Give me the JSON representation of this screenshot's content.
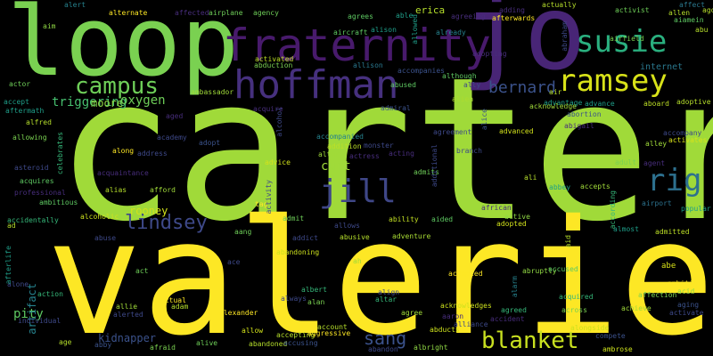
{
  "words": [
    {
      "text": "carter",
      "color": "#a0da39"
    },
    {
      "text": "valerie",
      "color": "#fde725"
    },
    {
      "text": "loop",
      "color": "#7ad151"
    },
    {
      "text": "jo",
      "color": "#482576"
    },
    {
      "text": "fraternity",
      "color": "#481a6c"
    },
    {
      "text": "hoffman",
      "color": "#46307e"
    },
    {
      "text": "susie",
      "color": "#2ab07f"
    },
    {
      "text": "ramsey",
      "color": "#d8e219"
    },
    {
      "text": "campus",
      "color": "#6ece58"
    },
    {
      "text": "jill",
      "color": "#3f4788"
    },
    {
      "text": "rig",
      "color": "#2d708e"
    },
    {
      "text": "lindsey",
      "color": "#3e4989"
    },
    {
      "text": "blanket",
      "color": "#c8e020"
    },
    {
      "text": "bernard",
      "color": "#3b528b"
    },
    {
      "text": "sang",
      "color": "#3b528b"
    },
    {
      "text": "triggering",
      "color": "#46c06f"
    },
    {
      "text": "moore",
      "color": "#8fd744"
    },
    {
      "text": "oxygen",
      "color": "#6ece58"
    },
    {
      "text": "curt",
      "color": "#9fda3a"
    },
    {
      "text": "rooney",
      "color": "#d2e21b"
    },
    {
      "text": "pity",
      "color": "#5ec962"
    },
    {
      "text": "kidnapper",
      "color": "#3b528b"
    },
    {
      "text": "artifact",
      "color": "#26828e"
    },
    {
      "text": "internet",
      "color": "#2a788e"
    },
    {
      "text": "erica",
      "color": "#b5de2b"
    },
    {
      "text": "alien",
      "color": "#addc30"
    },
    {
      "text": "alexander",
      "color": "#fde725"
    },
    {
      "text": "albert",
      "color": "#35b779"
    },
    {
      "text": "afraid",
      "color": "#7ad151"
    },
    {
      "text": "alive",
      "color": "#6ece58"
    },
    {
      "text": "abandoned",
      "color": "#b5de2b"
    },
    {
      "text": "abandon",
      "color": "#3e4989"
    },
    {
      "text": "albright",
      "color": "#8fd744"
    },
    {
      "text": "ambrose",
      "color": "#cde11d"
    },
    {
      "text": "compete",
      "color": "#3b528b"
    },
    {
      "text": "alongside",
      "color": "#cde11d"
    },
    {
      "text": "adventure",
      "color": "#a8db34"
    },
    {
      "text": "ability",
      "color": "#c2df23"
    },
    {
      "text": "aided",
      "color": "#5ec962"
    },
    {
      "text": "admit",
      "color": "#6ece58"
    },
    {
      "text": "addict",
      "color": "#3e4989"
    },
    {
      "text": "abusive",
      "color": "#b5de2b"
    },
    {
      "text": "accepted",
      "color": "#fde725"
    },
    {
      "text": "abruptly",
      "color": "#90d743"
    },
    {
      "text": "accused",
      "color": "#5ec962"
    },
    {
      "text": "acquired",
      "color": "#35b779"
    },
    {
      "text": "achieve",
      "color": "#a0da39"
    },
    {
      "text": "affection",
      "color": "#7ad151"
    },
    {
      "text": "activate",
      "color": "#3e4989"
    },
    {
      "text": "ambition",
      "color": "#fde725"
    },
    {
      "text": "abe",
      "color": "#d8e219"
    },
    {
      "text": "acid",
      "color": "#8fd744"
    },
    {
      "text": "aging",
      "color": "#3b528b"
    },
    {
      "text": "adoptive",
      "color": "#b5de2b"
    },
    {
      "text": "advantage",
      "color": "#1f9e89"
    },
    {
      "text": "abortion",
      "color": "#3b528b"
    },
    {
      "text": "abigail",
      "color": "#472d7b"
    },
    {
      "text": "accompany",
      "color": "#3e4989"
    },
    {
      "text": "activates",
      "color": "#d8e219"
    },
    {
      "text": "alley",
      "color": "#a0da39"
    },
    {
      "text": "adult",
      "color": "#7ad151"
    },
    {
      "text": "accepts",
      "color": "#a0da39"
    },
    {
      "text": "abbey",
      "color": "#1fa187"
    },
    {
      "text": "airport",
      "color": "#2c728e"
    },
    {
      "text": "popular",
      "color": "#1f9e89"
    },
    {
      "text": "almost",
      "color": "#1f9e89"
    },
    {
      "text": "admitted",
      "color": "#bddf26"
    },
    {
      "text": "adopted",
      "color": "#d2e21b"
    },
    {
      "text": "active",
      "color": "#8fd744"
    },
    {
      "text": "actually",
      "color": "#b5de2b"
    },
    {
      "text": "activist",
      "color": "#6ece58"
    },
    {
      "text": "affect",
      "color": "#2a788e"
    },
    {
      "text": "allen",
      "color": "#b5de2b"
    },
    {
      "text": "ago",
      "color": "#b5de2b"
    },
    {
      "text": "aiamein",
      "color": "#5ec962"
    },
    {
      "text": "agrees",
      "color": "#5ec962"
    },
    {
      "text": "agreeing",
      "color": "#472d7b"
    },
    {
      "text": "afterwards",
      "color": "#fde725"
    },
    {
      "text": "alternate",
      "color": "#fde725"
    },
    {
      "text": "airplane",
      "color": "#6ece58"
    },
    {
      "text": "agency",
      "color": "#6ece58"
    },
    {
      "text": "alison",
      "color": "#1f9e89"
    },
    {
      "text": "already",
      "color": "#26828e"
    },
    {
      "text": "aircraft",
      "color": "#5ec962"
    },
    {
      "text": "activated",
      "color": "#bddf26"
    },
    {
      "text": "abduction",
      "color": "#7ad151"
    },
    {
      "text": "allison",
      "color": "#2a788e"
    },
    {
      "text": "accompanies",
      "color": "#3b528b"
    },
    {
      "text": "although",
      "color": "#5ec962"
    },
    {
      "text": "abused",
      "color": "#5ec962"
    },
    {
      "text": "admiral",
      "color": "#3b528b"
    },
    {
      "text": "ambassador",
      "color": "#a0da39"
    },
    {
      "text": "actor",
      "color": "#6ece58"
    },
    {
      "text": "aftermath",
      "color": "#1f9e89"
    },
    {
      "text": "alfred",
      "color": "#b5de2b"
    },
    {
      "text": "allowing",
      "color": "#7ad151"
    },
    {
      "text": "academy",
      "color": "#3e4989"
    },
    {
      "text": "adopt",
      "color": "#3b528b"
    },
    {
      "text": "along",
      "color": "#fde725"
    },
    {
      "text": "address",
      "color": "#3e4989"
    },
    {
      "text": "accompanied",
      "color": "#26828e"
    },
    {
      "text": "addition",
      "color": "#bddf26"
    },
    {
      "text": "alter",
      "color": "#a0da39"
    },
    {
      "text": "advice",
      "color": "#d2e21b"
    },
    {
      "text": "acquaintance",
      "color": "#472d7b"
    },
    {
      "text": "alias",
      "color": "#b5de2b"
    },
    {
      "text": "afford",
      "color": "#a0da39"
    },
    {
      "text": "asteroid",
      "color": "#3e4989"
    },
    {
      "text": "acquires",
      "color": "#5ec962"
    },
    {
      "text": "professional",
      "color": "#472d7b"
    },
    {
      "text": "ambitious",
      "color": "#5ec962"
    },
    {
      "text": "alcoholic",
      "color": "#cde11d"
    },
    {
      "text": "accidentally",
      "color": "#35b779"
    },
    {
      "text": "agreement",
      "color": "#3e4989"
    },
    {
      "text": "advanced",
      "color": "#d2e21b"
    },
    {
      "text": "acknowledge",
      "color": "#a0da39"
    },
    {
      "text": "advance",
      "color": "#1f9e89"
    },
    {
      "text": "aboard",
      "color": "#bddf26"
    },
    {
      "text": "abuse",
      "color": "#3e4989"
    },
    {
      "text": "aang",
      "color": "#6ece58"
    },
    {
      "text": "abandoning",
      "color": "#cde11d"
    },
    {
      "text": "allows",
      "color": "#3e4989"
    },
    {
      "text": "act",
      "color": "#6ece58"
    },
    {
      "text": "action",
      "color": "#35b779"
    },
    {
      "text": "alone",
      "color": "#3e4989"
    },
    {
      "text": "individual",
      "color": "#3e4989"
    },
    {
      "text": "age",
      "color": "#b5de2b"
    },
    {
      "text": "abby",
      "color": "#3b528b"
    },
    {
      "text": "allie",
      "color": "#a0da39"
    },
    {
      "text": "alerted",
      "color": "#3e4989"
    },
    {
      "text": "adam",
      "color": "#b5de2b"
    },
    {
      "text": "allow",
      "color": "#d2e21b"
    },
    {
      "text": "accepting",
      "color": "#b5de2b"
    },
    {
      "text": "accusing",
      "color": "#3b528b"
    },
    {
      "text": "aggressive",
      "color": "#fde725"
    },
    {
      "text": "account",
      "color": "#b5de2b"
    },
    {
      "text": "alan",
      "color": "#7ad151"
    },
    {
      "text": "agree",
      "color": "#a0da39"
    },
    {
      "text": "altar",
      "color": "#35b779"
    },
    {
      "text": "align",
      "color": "#3e4989"
    },
    {
      "text": "ah",
      "color": "#a0da39"
    },
    {
      "text": "acknowledges",
      "color": "#cde11d"
    },
    {
      "text": "agreed",
      "color": "#35b779"
    },
    {
      "text": "across",
      "color": "#7ad151"
    },
    {
      "text": "abducts",
      "color": "#cde11d"
    },
    {
      "text": "alliance",
      "color": "#3e4989"
    },
    {
      "text": "accident",
      "color": "#472d7b"
    },
    {
      "text": "always",
      "color": "#3e4989"
    },
    {
      "text": "actual",
      "color": "#fde725"
    },
    {
      "text": "aim",
      "color": "#8fd744"
    },
    {
      "text": "able",
      "color": "#1f9e89"
    },
    {
      "text": "alert",
      "color": "#26828e"
    },
    {
      "text": "abu",
      "color": "#b5de2b"
    },
    {
      "text": "accept",
      "color": "#1f9e89"
    },
    {
      "text": "ali",
      "color": "#b5de2b"
    },
    {
      "text": "ad",
      "color": "#b5de2b"
    },
    {
      "text": "ace",
      "color": "#3e4989"
    },
    {
      "text": "tag",
      "color": "#fde725"
    },
    {
      "text": "adopting",
      "color": "#472d7b"
    },
    {
      "text": "affected",
      "color": "#472d7b"
    },
    {
      "text": "adding",
      "color": "#472d7b"
    },
    {
      "text": "admits",
      "color": "#6ece58"
    },
    {
      "text": "acting",
      "color": "#472d7b"
    },
    {
      "text": "actress",
      "color": "#472d7b"
    },
    {
      "text": "monster",
      "color": "#3e4989"
    },
    {
      "text": "branch",
      "color": "#3e4989"
    },
    {
      "text": "african",
      "color": "#472d7b"
    },
    {
      "text": "acquire",
      "color": "#472d7b"
    },
    {
      "text": "aged",
      "color": "#472d7b"
    },
    {
      "text": "aaron",
      "color": "#472d7b"
    },
    {
      "text": "agent",
      "color": "#472d7b"
    },
    {
      "text": "ally",
      "color": "#3e4989"
    },
    {
      "text": "allowed",
      "color": "#1f9e89"
    },
    {
      "text": "abraham",
      "color": "#3e4989"
    },
    {
      "text": "aid",
      "color": "#b5de2b"
    },
    {
      "text": "airfield",
      "color": "#7ad151"
    },
    {
      "text": "air",
      "color": "#b5de2b"
    },
    {
      "text": "celebrates",
      "color": "#35b779"
    },
    {
      "text": "alcohol",
      "color": "#3e4989"
    },
    {
      "text": "additional",
      "color": "#3e4989"
    },
    {
      "text": "activity",
      "color": "#3e4989"
    },
    {
      "text": "afterlife",
      "color": "#1f9e89"
    },
    {
      "text": "alarm",
      "color": "#26828e"
    },
    {
      "text": "alice",
      "color": "#3b528b"
    },
    {
      "text": "according",
      "color": "#35b779"
    }
  ]
}
